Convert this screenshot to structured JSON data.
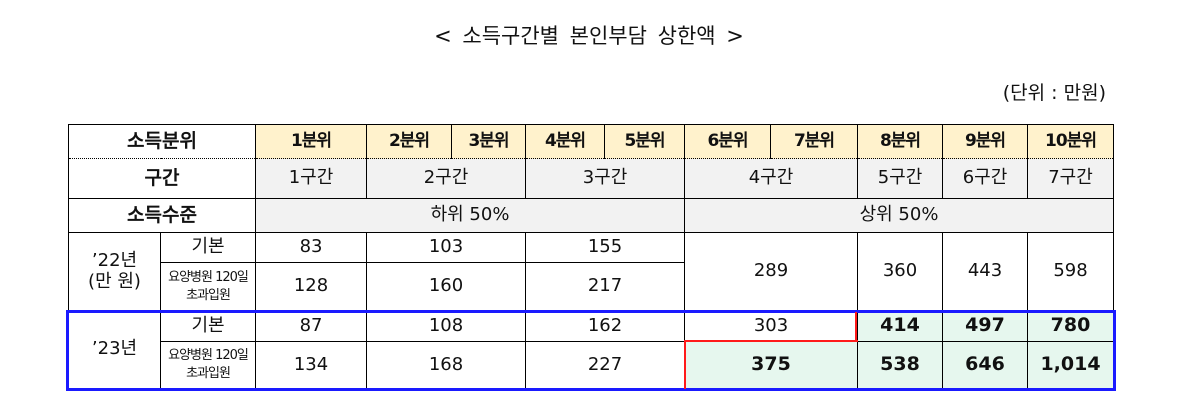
{
  "title": "< 소득구간별 본인부담 상한액 >",
  "unit": "(단위 : 만원)",
  "header": {
    "label": "소득분위",
    "deciles": [
      "1분위",
      "2분위",
      "3분위",
      "4분위",
      "5분위",
      "6분위",
      "7분위",
      "8분위",
      "9분위",
      "10분위"
    ]
  },
  "brackets": {
    "label": "구간",
    "values": [
      "1구간",
      "2구간",
      "3구간",
      "4구간",
      "5구간",
      "6구간",
      "7구간"
    ]
  },
  "level": {
    "label": "소득수준",
    "lower": "하위 50%",
    "upper": "상위 50%"
  },
  "y2022": {
    "label_line1": "’22년",
    "label_line2": "(만 원)",
    "basic_label": "기본",
    "long_label_line1": "요양병원 120일",
    "long_label_line2": "초과입원",
    "basic": [
      "83",
      "103",
      "155"
    ],
    "long": [
      "128",
      "160",
      "217"
    ],
    "shared": [
      "289",
      "360",
      "443",
      "598"
    ]
  },
  "y2023": {
    "label": "’23년",
    "basic_label": "기본",
    "long_label_line1": "요양병원 120일",
    "long_label_line2": "초과입원",
    "basic": [
      "87",
      "108",
      "162",
      "303",
      "414",
      "497",
      "780"
    ],
    "long": [
      "134",
      "168",
      "227",
      "375",
      "538",
      "646",
      "1,014"
    ]
  },
  "colors": {
    "header_bg": "#FFF2CC",
    "gray_bg": "#F2F2F2",
    "highlight_bg": "#E6F7EE",
    "highlight_border": "#1a1aff",
    "change_border": "#ff1a1a"
  }
}
